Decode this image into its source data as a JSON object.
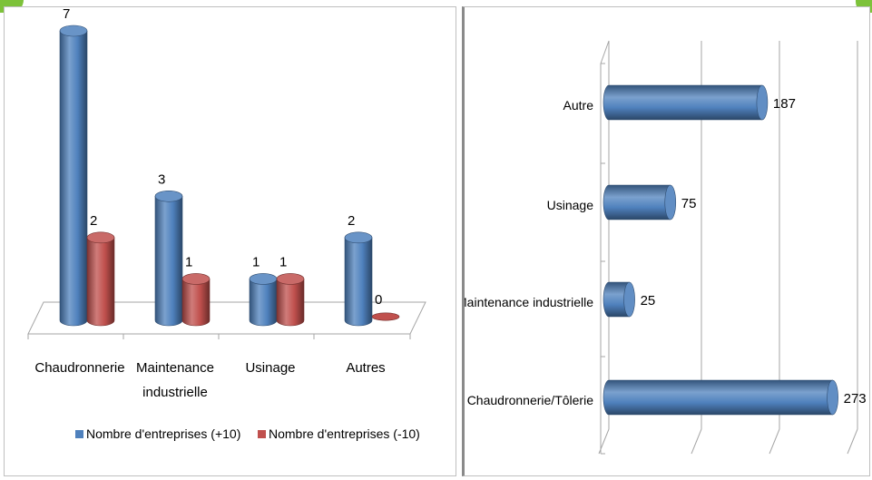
{
  "left_chart": {
    "chart_data": {
      "type": "bar",
      "categories": [
        "Chaudronnerie",
        "Maintenance\nindustrielle",
        "Usinage",
        "Autres"
      ],
      "series": [
        {
          "name": "Nombre d'entreprises (+10)",
          "values": [
            7,
            3,
            1,
            2
          ],
          "color": "#4f81bd"
        },
        {
          "name": "Nombre d'entreprises (-10)",
          "values": [
            2,
            1,
            1,
            0
          ],
          "color": "#c0504d"
        }
      ],
      "ylim": [
        0,
        7
      ],
      "legend_position": "bottom",
      "grid": false
    }
  },
  "right_chart": {
    "chart_data": {
      "type": "bar",
      "orientation": "horizontal",
      "categories": [
        "Chaudronnerie/Tôlerie",
        "Maintenance industrielle",
        "Usinage",
        "Autre"
      ],
      "values": [
        273,
        25,
        75,
        187
      ],
      "color": "#4f81bd",
      "xlim": [
        0,
        300
      ],
      "grid": true,
      "legend_position": "none"
    }
  }
}
